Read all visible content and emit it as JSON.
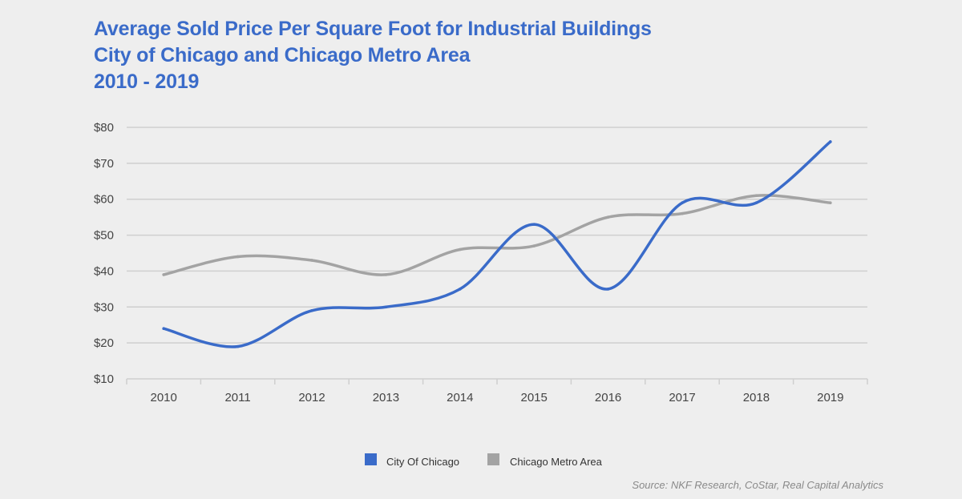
{
  "chart_data": {
    "type": "line",
    "title": "Average Sold Price Per Square Foot for Industrial Buildings",
    "subtitle": "City of Chicago and Chicago Metro Area",
    "date_range": "2010 - 2019",
    "categories": [
      "2010",
      "2011",
      "2012",
      "2013",
      "2014",
      "2015",
      "2016",
      "2017",
      "2018",
      "2019"
    ],
    "series": [
      {
        "name": "City Of Chicago",
        "color": "#3a6bc9",
        "values": [
          24,
          19,
          29,
          30,
          35,
          53,
          35,
          59,
          59,
          76
        ]
      },
      {
        "name": "Chicago Metro Area",
        "color": "#a3a3a3",
        "values": [
          39,
          44,
          43,
          39,
          46,
          47,
          55,
          56,
          61,
          59
        ]
      }
    ],
    "ylim": [
      10,
      80
    ],
    "yticks": [
      80,
      70,
      60,
      50,
      40,
      30,
      20,
      10
    ],
    "ytick_labels": [
      "$80",
      "$70",
      "$60",
      "$50",
      "$40",
      "$30",
      "$20",
      "$10"
    ],
    "xlabel": "",
    "ylabel": "",
    "grid": true,
    "legend_position": "bottom-center",
    "source": "Source: NKF Research, CoStar, Real Capital Analytics"
  }
}
